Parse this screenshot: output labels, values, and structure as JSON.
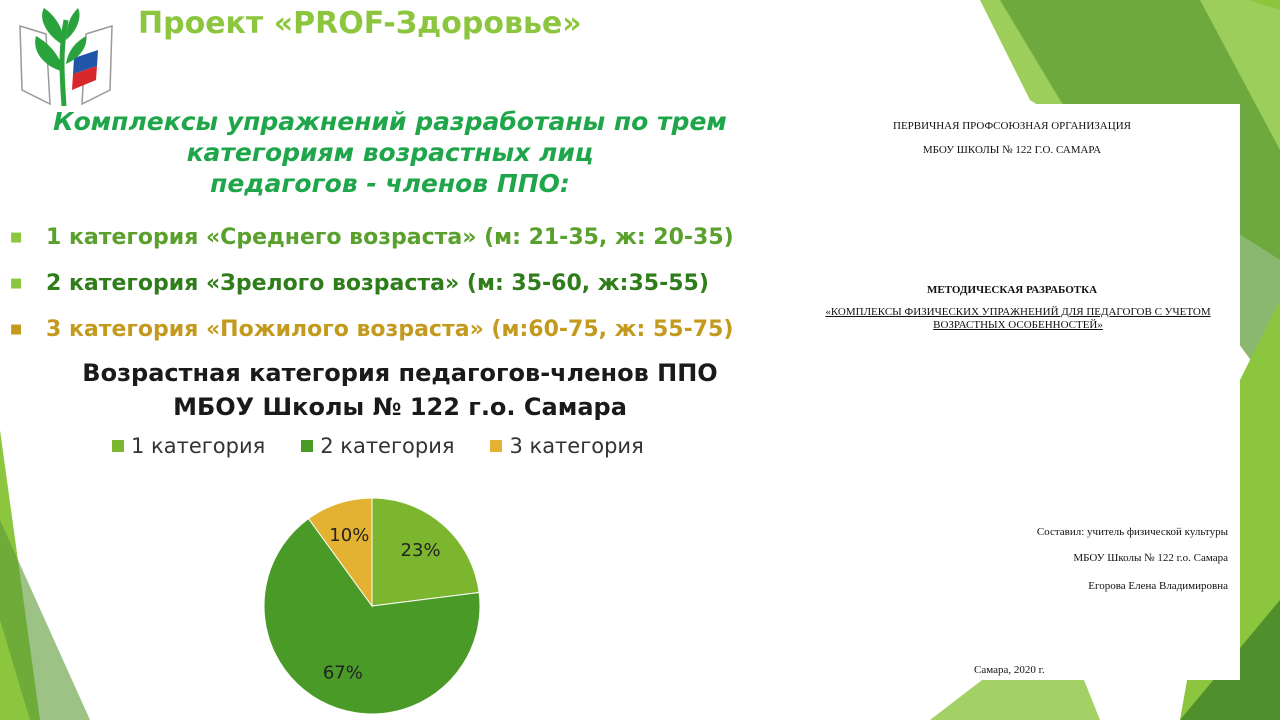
{
  "project_title": "Проект «PROF-Здоровье»",
  "subtitle_lines": [
    "Комплексы упражнений разработаны по трем",
    "категориям возрастных лиц",
    "педагогов - членов ППО:"
  ],
  "categories": [
    {
      "label": "1 категория «Среднего возраста» (м: 21-35, ж: 20-35)",
      "color": "#5aa02c"
    },
    {
      "label": "2 категория «Зрелого возраста» (м: 35-60, ж:35-55)",
      "color": "#2e7d1a"
    },
    {
      "label": "3 категория «Пожилого возраста» (м:60-75, ж: 55-75)",
      "color": "#c49a1e"
    }
  ],
  "chart_data": {
    "type": "pie",
    "title_lines": [
      "Возрастная категория педагогов-членов ППО",
      "МБОУ Школы № 122 г.о. Самара"
    ],
    "legend": "top",
    "slices": [
      {
        "name": "1 категория",
        "value": 23,
        "label": "23%",
        "color": "#7cb52e"
      },
      {
        "name": "2 категория",
        "value": 67,
        "label": "67%",
        "color": "#4a9a28"
      },
      {
        "name": "3 категория",
        "value": 10,
        "label": "10%",
        "color": "#e3b232"
      }
    ]
  },
  "document": {
    "org_line1": "ПЕРВИЧНАЯ ПРОФСОЮЗНАЯ ОРГАНИЗАЦИЯ",
    "org_line2": "МБОУ ШКОЛЫ № 122 Г.О. САМАРА",
    "doc_type": "МЕТОДИЧЕСКАЯ РАЗРАБОТКА",
    "doc_name": "«КОМПЛЕКСЫ ФИЗИЧЕСКИХ УПРАЖНЕНИЙ ДЛЯ ПЕДАГОГОВ С УЧЕТОМ ВОЗРАСТНЫХ ОСОБЕННОСТЕЙ»",
    "author_line1": "Составил: учитель физической культуры",
    "author_line2": "МБОУ Школы № 122 г.о. Самара",
    "author_line3": "Егорова Елена Владимировна",
    "city_year": "Самара, 2020 г."
  }
}
